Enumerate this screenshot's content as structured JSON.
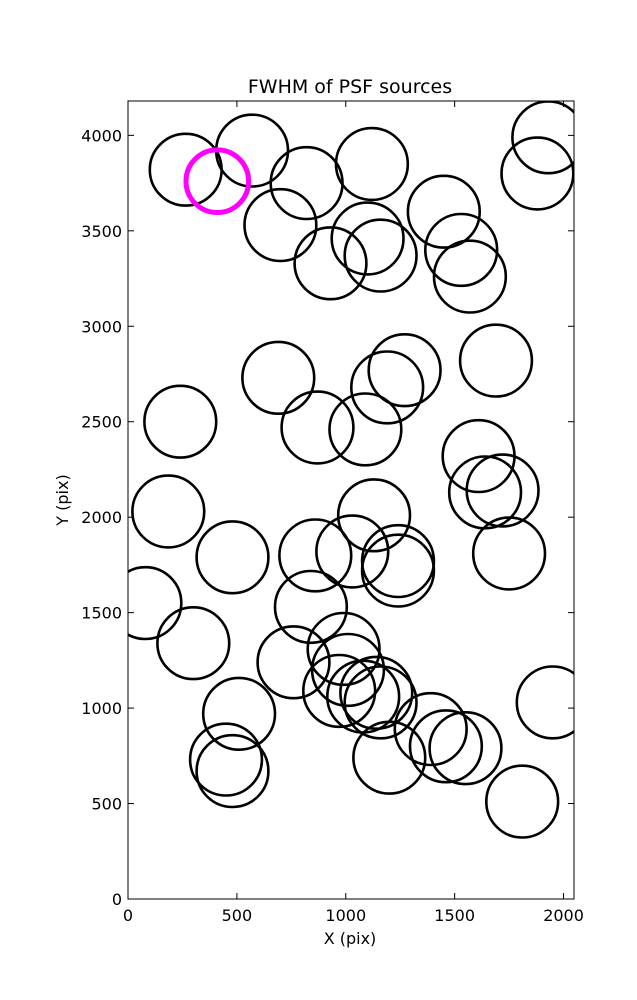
{
  "chart_data": {
    "type": "scatter",
    "title": "FWHM of PSF sources",
    "xlabel": "X (pix)",
    "ylabel": "Y (pix)",
    "xlim": [
      0,
      2048
    ],
    "ylim": [
      0,
      4180
    ],
    "xticks": [
      0,
      500,
      1000,
      1500,
      2000
    ],
    "yticks": [
      0,
      500,
      1000,
      1500,
      2000,
      2500,
      3000,
      3500,
      4000
    ],
    "grid": false,
    "radius": 165,
    "sources": [
      {
        "x": 265,
        "y": 3820
      },
      {
        "x": 570,
        "y": 3920
      },
      {
        "x": 820,
        "y": 3750
      },
      {
        "x": 700,
        "y": 3530
      },
      {
        "x": 1120,
        "y": 3850
      },
      {
        "x": 930,
        "y": 3330
      },
      {
        "x": 1100,
        "y": 3460
      },
      {
        "x": 1160,
        "y": 3370
      },
      {
        "x": 1450,
        "y": 3600
      },
      {
        "x": 1530,
        "y": 3400
      },
      {
        "x": 1570,
        "y": 3260
      },
      {
        "x": 1930,
        "y": 3990
      },
      {
        "x": 1880,
        "y": 3800
      },
      {
        "x": 690,
        "y": 2730
      },
      {
        "x": 1270,
        "y": 2770
      },
      {
        "x": 1190,
        "y": 2680
      },
      {
        "x": 1690,
        "y": 2820
      },
      {
        "x": 240,
        "y": 2500
      },
      {
        "x": 870,
        "y": 2470
      },
      {
        "x": 1090,
        "y": 2460
      },
      {
        "x": 1610,
        "y": 2320
      },
      {
        "x": 1640,
        "y": 2130
      },
      {
        "x": 1720,
        "y": 2140
      },
      {
        "x": 185,
        "y": 2030
      },
      {
        "x": 1130,
        "y": 2010
      },
      {
        "x": 480,
        "y": 1790
      },
      {
        "x": 860,
        "y": 1800
      },
      {
        "x": 1030,
        "y": 1820
      },
      {
        "x": 1240,
        "y": 1770
      },
      {
        "x": 1240,
        "y": 1720
      },
      {
        "x": 1750,
        "y": 1810
      },
      {
        "x": 80,
        "y": 1550
      },
      {
        "x": 840,
        "y": 1530
      },
      {
        "x": 300,
        "y": 1340
      },
      {
        "x": 760,
        "y": 1240
      },
      {
        "x": 990,
        "y": 1310
      },
      {
        "x": 1010,
        "y": 1200
      },
      {
        "x": 970,
        "y": 1090
      },
      {
        "x": 1080,
        "y": 1060
      },
      {
        "x": 1140,
        "y": 1080
      },
      {
        "x": 1160,
        "y": 1030
      },
      {
        "x": 510,
        "y": 970
      },
      {
        "x": 1950,
        "y": 1030
      },
      {
        "x": 1390,
        "y": 890
      },
      {
        "x": 1460,
        "y": 800
      },
      {
        "x": 1550,
        "y": 790
      },
      {
        "x": 1200,
        "y": 740
      },
      {
        "x": 450,
        "y": 730
      },
      {
        "x": 480,
        "y": 670
      },
      {
        "x": 1810,
        "y": 510
      }
    ],
    "highlight": {
      "x": 410,
      "y": 3760,
      "color": "#ff00ff"
    }
  }
}
